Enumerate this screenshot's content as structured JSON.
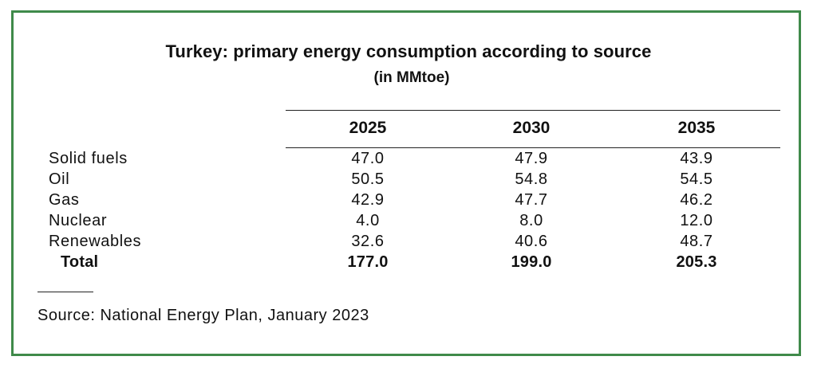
{
  "title": "Turkey: primary energy consumption according to source",
  "subtitle": "(in MMtoe)",
  "columns": [
    "2025",
    "2030",
    "2035"
  ],
  "rows": [
    {
      "label": "Solid fuels",
      "values": [
        "47.0",
        "47.9",
        "43.9"
      ]
    },
    {
      "label": "Oil",
      "values": [
        "50.5",
        "54.8",
        "54.5"
      ]
    },
    {
      "label": "Gas",
      "values": [
        "42.9",
        "47.7",
        "46.2"
      ]
    },
    {
      "label": "Nuclear",
      "values": [
        "4.0",
        "8.0",
        "12.0"
      ]
    },
    {
      "label": "Renewables",
      "values": [
        "32.6",
        "40.6",
        "48.7"
      ]
    }
  ],
  "total": {
    "label": "Total",
    "values": [
      "177.0",
      "199.0",
      "205.3"
    ]
  },
  "source": "Source: National Energy Plan, January 2023",
  "colors": {
    "border": "#3f8a4a",
    "text": "#111111"
  }
}
